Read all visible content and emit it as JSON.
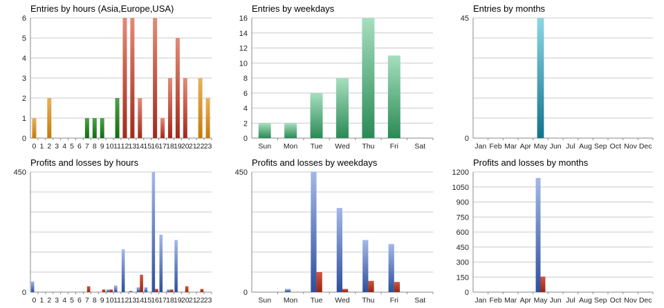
{
  "colors": {
    "grid": "#c8c8c8",
    "axis": "#888888",
    "tick_text": "#222222",
    "title_text": "#111111",
    "hours_asia": "#c9840e",
    "hours_europe": "#1f7a1f",
    "hours_usa": "#b0362a",
    "weekdays": "#2e9a5e",
    "months": "#3bb1c9",
    "profit": "#3a5fb0",
    "loss": "#b0321e"
  },
  "chart_data": [
    {
      "type": "bar",
      "title": "Entries by hours (Asia,Europe,USA)",
      "categories": [
        "0",
        "1",
        "2",
        "3",
        "4",
        "5",
        "6",
        "7",
        "8",
        "9",
        "10",
        "11",
        "12",
        "13",
        "14",
        "15",
        "16",
        "17",
        "18",
        "19",
        "20",
        "21",
        "22",
        "23"
      ],
      "values": [
        1,
        0,
        2,
        0,
        0,
        0,
        0,
        1,
        1,
        1,
        0,
        2,
        6,
        6,
        2,
        0,
        6,
        1,
        3,
        5,
        3,
        0,
        3,
        2
      ],
      "bar_groups": [
        "asia",
        "asia",
        "asia",
        "asia",
        "asia",
        "asia",
        "asia",
        "europe",
        "europe",
        "europe",
        "europe",
        "europe",
        "usa",
        "usa",
        "usa",
        "usa",
        "usa",
        "usa",
        "usa",
        "usa",
        "usa",
        "asia",
        "asia",
        "asia"
      ],
      "yticks": [
        0,
        1,
        2,
        3,
        4,
        5,
        6
      ],
      "ylim": [
        0,
        6
      ]
    },
    {
      "type": "bar",
      "title": "Entries by weekdays",
      "categories": [
        "Sun",
        "Mon",
        "Tue",
        "Wed",
        "Thu",
        "Fri",
        "Sat"
      ],
      "values": [
        2,
        2,
        6,
        8,
        16,
        11,
        0
      ],
      "yticks": [
        0,
        2,
        4,
        6,
        8,
        10,
        12,
        14,
        16
      ],
      "ylim": [
        0,
        16
      ]
    },
    {
      "type": "bar",
      "title": "Entries by months",
      "categories": [
        "Jan",
        "Feb",
        "Mar",
        "Apr",
        "May",
        "Jun",
        "Jul",
        "Aug",
        "Sep",
        "Oct",
        "Nov",
        "Dec"
      ],
      "values": [
        0,
        0,
        0,
        0,
        45,
        0,
        0,
        0,
        0,
        0,
        0,
        0
      ],
      "yticks": [
        0,
        45
      ],
      "ylim": [
        0,
        45
      ]
    },
    {
      "type": "bar",
      "title": "Profits and losses by hours",
      "categories": [
        "0",
        "1",
        "2",
        "3",
        "4",
        "5",
        "6",
        "7",
        "8",
        "9",
        "10",
        "11",
        "12",
        "13",
        "14",
        "15",
        "16",
        "17",
        "18",
        "19",
        "20",
        "21",
        "22",
        "23"
      ],
      "series": [
        {
          "name": "Profits",
          "values": [
            40,
            0,
            0,
            0,
            0,
            0,
            0,
            0,
            0,
            0,
            10,
            25,
            160,
            5,
            18,
            18,
            450,
            215,
            10,
            195,
            0,
            0,
            0,
            0
          ]
        },
        {
          "name": "Losses",
          "values": [
            0,
            0,
            0,
            0,
            0,
            0,
            0,
            22,
            0,
            10,
            10,
            0,
            0,
            0,
            65,
            0,
            12,
            0,
            10,
            0,
            22,
            0,
            12,
            0
          ]
        }
      ],
      "yticks": [
        0,
        450
      ],
      "ylim": [
        0,
        450
      ]
    },
    {
      "type": "bar",
      "title": "Profits and losses by weekdays",
      "categories": [
        "Sun",
        "Mon",
        "Tue",
        "Wed",
        "Thu",
        "Fri",
        "Sat"
      ],
      "series": [
        {
          "name": "Profits",
          "values": [
            0,
            12,
            450,
            315,
            195,
            180,
            0
          ]
        },
        {
          "name": "Losses",
          "values": [
            0,
            0,
            75,
            12,
            42,
            38,
            0
          ]
        }
      ],
      "yticks": [
        0,
        450
      ],
      "ylim": [
        0,
        450
      ]
    },
    {
      "type": "bar",
      "title": "Profits and losses by months",
      "categories": [
        "Jan",
        "Feb",
        "Mar",
        "Apr",
        "May",
        "Jun",
        "Jul",
        "Aug",
        "Sep",
        "Oct",
        "Nov",
        "Dec"
      ],
      "series": [
        {
          "name": "Profits",
          "values": [
            0,
            0,
            0,
            0,
            1140,
            0,
            0,
            0,
            0,
            0,
            0,
            0
          ]
        },
        {
          "name": "Losses",
          "values": [
            0,
            0,
            0,
            0,
            155,
            0,
            0,
            0,
            0,
            0,
            0,
            0
          ]
        }
      ],
      "yticks": [
        0,
        150,
        300,
        450,
        600,
        750,
        900,
        1050,
        1200
      ],
      "ylim": [
        0,
        1200
      ]
    }
  ]
}
